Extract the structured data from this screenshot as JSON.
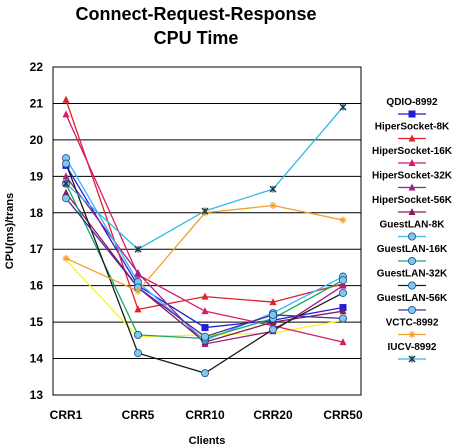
{
  "chart_data": {
    "type": "line",
    "title_lines": [
      "Connect-Request-Response",
      "CPU Time"
    ],
    "xlabel": "Clients",
    "ylabel": "CPU(ms)/trans",
    "categories": [
      "CRR1",
      "CRR5",
      "CRR10",
      "CRR20",
      "CRR50"
    ],
    "ylim": [
      13,
      22
    ],
    "yticks": [
      13,
      14,
      15,
      16,
      17,
      18,
      19,
      20,
      21,
      22
    ],
    "grid": true,
    "legend_position": "right",
    "series": [
      {
        "name": "QDIO-8992",
        "color": "#1f1fd6",
        "marker": "square",
        "values": [
          19.3,
          16.0,
          14.85,
          15.05,
          15.4
        ]
      },
      {
        "name": "HiperSocket-8K",
        "color": "#e0202a",
        "marker": "triangle",
        "values": [
          21.1,
          15.35,
          15.7,
          15.55,
          16.05
        ]
      },
      {
        "name": "HiperSocket-16K",
        "color": "#d81a6a",
        "marker": "triangle",
        "values": [
          20.7,
          16.3,
          15.3,
          14.9,
          14.45
        ]
      },
      {
        "name": "HiperSocket-32K",
        "color": "#a0208a",
        "marker": "triangle",
        "values": [
          19.0,
          16.35,
          14.4,
          14.75,
          16.0
        ]
      },
      {
        "name": "HiperSocket-56K",
        "color": "#8a1a5a",
        "marker": "triangle",
        "values": [
          18.55,
          15.95,
          14.45,
          15.0,
          15.3
        ]
      },
      {
        "name": "GuestLAN-8K",
        "color": "#3db5ff",
        "marker": "circle",
        "values": [
          19.5,
          16.1,
          14.5,
          15.25,
          16.25
        ]
      },
      {
        "name": "GuestLAN-16K",
        "color": "#1aa860",
        "marker": "circle",
        "values": [
          18.8,
          14.65,
          14.55,
          15.1,
          16.15
        ]
      },
      {
        "name": "GuestLAN-32K",
        "color": "#1a1a1a",
        "marker": "circle",
        "values": [
          19.35,
          14.15,
          13.6,
          14.8,
          15.8
        ]
      },
      {
        "name": "GuestLAN-56K",
        "color": "#4a2aa0",
        "marker": "circle",
        "values": [
          18.4,
          15.95,
          14.6,
          15.2,
          15.1
        ]
      },
      {
        "name": "VCTC-8992",
        "color": "#f0a030",
        "marker": "star",
        "values": [
          16.75,
          15.85,
          18.0,
          18.2,
          17.8
        ]
      },
      {
        "name": "IUCV-8992",
        "color": "#30b8e0",
        "marker": "x",
        "values": [
          18.8,
          17.0,
          18.05,
          18.65,
          20.9
        ]
      }
    ],
    "extra_series": {
      "color": "#f5f52a",
      "values": [
        16.7,
        14.6,
        14.65,
        14.7,
        15.05
      ]
    }
  }
}
